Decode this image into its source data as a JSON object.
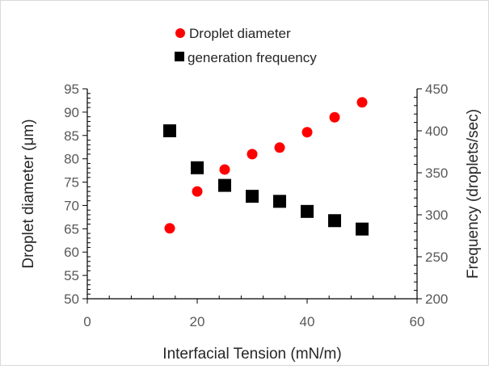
{
  "chart_data": {
    "type": "scatter",
    "title": "",
    "xlabel": "Interfacial Tension (mN/m)",
    "ylabel": "Droplet diameter (μm)",
    "y2label": "Frequency (droplets/sec)",
    "xlim": [
      0,
      60
    ],
    "ylim": [
      50,
      95
    ],
    "y2lim": [
      200,
      450
    ],
    "x_ticks": [
      "0",
      "20",
      "40",
      "60"
    ],
    "y_ticks": [
      "50",
      "55",
      "60",
      "65",
      "70",
      "75",
      "80",
      "85",
      "90",
      "95"
    ],
    "y2_ticks": [
      "200",
      "250",
      "300",
      "350",
      "400",
      "450"
    ],
    "grid": false,
    "legend_position": "top-center",
    "series": [
      {
        "name": "Droplet diameter",
        "axis": "left",
        "marker": "circle",
        "color": "#ff0000",
        "x": [
          15,
          20,
          25,
          30,
          35,
          40,
          45,
          50
        ],
        "y": [
          65.1,
          73.0,
          77.7,
          81.0,
          82.4,
          85.7,
          88.9,
          92.1
        ]
      },
      {
        "name": "generation frequency",
        "axis": "right",
        "marker": "square",
        "color": "#000000",
        "x": [
          15,
          20,
          25,
          30,
          35,
          40,
          45,
          50
        ],
        "y": [
          400,
          356,
          335,
          322,
          316,
          304,
          293,
          283
        ]
      }
    ]
  }
}
